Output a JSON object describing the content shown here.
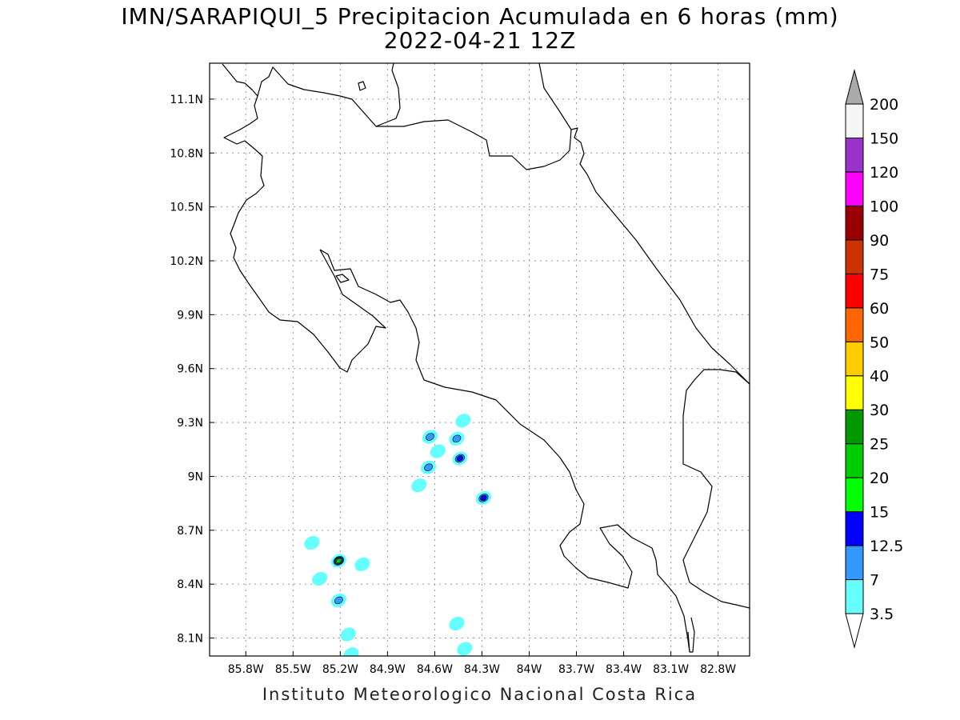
{
  "title_line1": "IMN/SARAPIQUI_5 Precipitacion Acumulada en 6 horas (mm)",
  "title_line2": "2022-04-21 12Z",
  "footer": "Instituto Meteorologico Nacional Costa Rica",
  "map": {
    "lon_range": [
      -86.03,
      -82.6
    ],
    "lat_range": [
      8.0,
      11.3
    ],
    "lon_ticks": [
      "85.8W",
      "85.5W",
      "85.2W",
      "84.9W",
      "84.6W",
      "84.3W",
      "84W",
      "83.7W",
      "83.4W",
      "83.1W",
      "82.8W"
    ],
    "lat_ticks": [
      "11.1N",
      "10.8N",
      "10.5N",
      "10.2N",
      "9.9N",
      "9.6N",
      "9.3N",
      "9N",
      "8.7N",
      "8.4N",
      "8.1N"
    ],
    "grid": true
  },
  "colorbar": {
    "labels": [
      "3.5",
      "7",
      "12.5",
      "15",
      "20",
      "25",
      "30",
      "40",
      "50",
      "60",
      "75",
      "90",
      "100",
      "120",
      "150",
      "200"
    ],
    "colors": [
      "#66ffff",
      "#3399ff",
      "#0000ff",
      "#00ff00",
      "#00cc00",
      "#009900",
      "#ffff00",
      "#ffcc00",
      "#ff6600",
      "#ff0000",
      "#cc3300",
      "#990000",
      "#ff00ff",
      "#9933cc",
      "#f5f5f5"
    ],
    "over_color": "#aaaaaa",
    "under_color": "#ffffff"
  },
  "precip_cells": [
    {
      "lon": -84.63,
      "lat": 9.22,
      "level": 2
    },
    {
      "lon": -84.46,
      "lat": 9.21,
      "level": 2
    },
    {
      "lon": -84.44,
      "lat": 9.1,
      "level": 3
    },
    {
      "lon": -84.64,
      "lat": 9.05,
      "level": 2
    },
    {
      "lon": -84.29,
      "lat": 8.88,
      "level": 3
    },
    {
      "lon": -85.21,
      "lat": 8.53,
      "level": 5
    },
    {
      "lon": -85.21,
      "lat": 8.31,
      "level": 2
    },
    {
      "lon": -84.7,
      "lat": 8.95,
      "level": 1
    },
    {
      "lon": -84.58,
      "lat": 9.14,
      "level": 1
    },
    {
      "lon": -85.33,
      "lat": 8.43,
      "level": 1
    },
    {
      "lon": -85.38,
      "lat": 8.63,
      "level": 1
    },
    {
      "lon": -84.42,
      "lat": 9.31,
      "level": 1
    },
    {
      "lon": -85.15,
      "lat": 8.12,
      "level": 1
    },
    {
      "lon": -84.46,
      "lat": 8.18,
      "level": 1
    },
    {
      "lon": -84.41,
      "lat": 8.04,
      "level": 1
    },
    {
      "lon": -85.13,
      "lat": 8.01,
      "level": 1
    },
    {
      "lon": -85.06,
      "lat": 8.51,
      "level": 1
    }
  ]
}
